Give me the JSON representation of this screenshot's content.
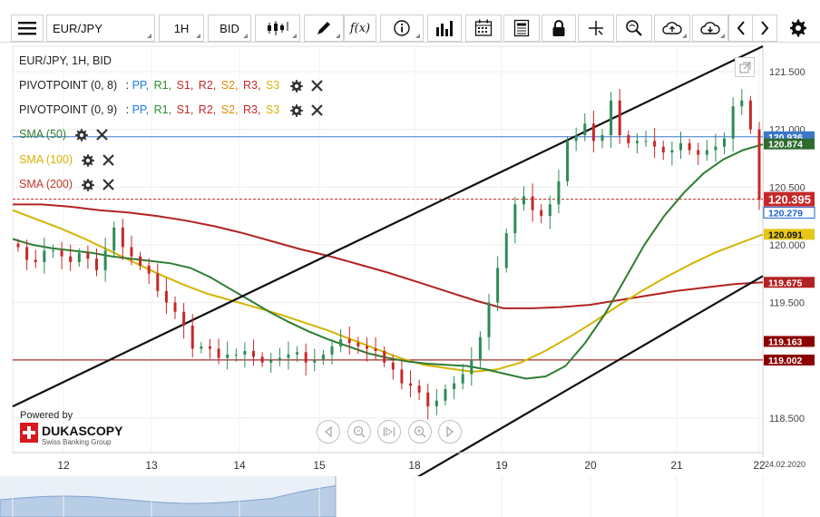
{
  "toolbar": {
    "symbol": "EUR/JPY",
    "timeframe": "1H",
    "price_side": "BID",
    "fx_label": "f(x)"
  },
  "legend": {
    "header": "EUR/JPY, 1H, BID",
    "pivots": [
      {
        "name": "PIVOTPOINT (0, 8)",
        "sep": ":",
        "levels": [
          "PP,",
          "R1,",
          "S1,",
          "R2,",
          "S2,",
          "R3,",
          "S3"
        ]
      },
      {
        "name": "PIVOTPOINT (0, 9)",
        "sep": ":",
        "levels": [
          "PP,",
          "R1,",
          "S1,",
          "R2,",
          "S2,",
          "R3,",
          "S3"
        ]
      }
    ],
    "pivot_colors": [
      "#1e7be0",
      "#2e8b2e",
      "#c62828",
      "#c62828",
      "#e08a00",
      "#c62828",
      "#d4b400"
    ],
    "sma": [
      {
        "label": "SMA (50)",
        "color": "#2e7d32"
      },
      {
        "label": "SMA (100)",
        "color": "#d4b400"
      },
      {
        "label": "SMA (200)",
        "color": "#c0392b"
      }
    ]
  },
  "branding": {
    "powered": "Powered by",
    "brand": "DUKASCOPY",
    "tagline": "Swiss Banking Group"
  },
  "chart_data": {
    "type": "candlestick",
    "symbol": "EUR/JPY",
    "interval": "1H",
    "ylim": [
      118.2,
      121.72
    ],
    "y_ticks": [
      118.5,
      119.0,
      119.5,
      120.0,
      120.5,
      121.0,
      121.5
    ],
    "y_tick_labels": [
      "118.500",
      "119.000",
      "119.500",
      "120.000",
      "120.500",
      "121.000",
      "121.500"
    ],
    "x_ticks": [
      "12",
      "13",
      "14",
      "15",
      "18",
      "19",
      "20",
      "21",
      "22"
    ],
    "date_label": "24.02.2020",
    "price_close": [
      119.98,
      119.87,
      119.85,
      119.95,
      119.95,
      119.9,
      119.85,
      119.93,
      119.88,
      119.78,
      119.95,
      120.15,
      119.98,
      119.9,
      119.82,
      119.75,
      119.6,
      119.5,
      119.42,
      119.3,
      119.1,
      119.12,
      119.1,
      119.02,
      119.05,
      119.05,
      119.08,
      119.03,
      118.98,
      119.0,
      119.02,
      119.05,
      119.07,
      118.98,
      119.0,
      119.05,
      119.12,
      119.18,
      119.15,
      119.12,
      119.1,
      119.08,
      118.98,
      118.92,
      118.8,
      118.78,
      118.72,
      118.6,
      118.65,
      118.75,
      118.8,
      118.88,
      119.0,
      119.2,
      119.5,
      119.8,
      120.1,
      120.35,
      120.42,
      120.3,
      120.25,
      120.35,
      120.55,
      120.9,
      120.95,
      121.05,
      120.9,
      120.95,
      121.25,
      120.95,
      120.88,
      120.9,
      120.9,
      120.85,
      120.8,
      120.82,
      120.88,
      120.82,
      120.78,
      120.82,
      120.85,
      120.92,
      121.2,
      121.25,
      121.0,
      120.39
    ],
    "levels": {
      "blue_line": {
        "value": 120.936,
        "label": "120.936",
        "color": "#3b78c9"
      },
      "last_close": {
        "value": 120.395,
        "label": "120.395",
        "color": "#c62828"
      },
      "blue2": {
        "value": 120.279,
        "label": "120.279",
        "color": "#1e63c9"
      },
      "sma50_label": {
        "value": 120.874,
        "label": "120.874",
        "color": "#2e6b2e"
      },
      "sma100_label": {
        "value": 120.091,
        "label": "120.091",
        "color": "#d4b400"
      },
      "sma200_label": {
        "value": 119.675,
        "label": "119.675",
        "color": "#b22222"
      },
      "red_tag_1": {
        "value": 119.163,
        "label": "119.163",
        "color": "#8b0000"
      },
      "red_tag_2": {
        "value": 119.002,
        "label": "119.002",
        "color": "#8b0000"
      }
    },
    "sma50": [
      120.05,
      120.0,
      119.97,
      119.95,
      119.93,
      119.9,
      119.88,
      119.86,
      119.84,
      119.8,
      119.72,
      119.62,
      119.52,
      119.42,
      119.33,
      119.25,
      119.18,
      119.12,
      119.06,
      119.02,
      118.99,
      118.97,
      118.96,
      118.95,
      118.92,
      118.88,
      118.84,
      118.86,
      118.95,
      119.15,
      119.4,
      119.7,
      120.0,
      120.25,
      120.45,
      120.62,
      120.74,
      120.82,
      120.87
    ],
    "sma100": [
      120.3,
      120.22,
      120.14,
      120.05,
      119.95,
      119.85,
      119.75,
      119.66,
      119.58,
      119.52,
      119.46,
      119.4,
      119.33,
      119.26,
      119.18,
      119.1,
      119.02,
      118.96,
      118.93,
      118.9,
      118.92,
      118.98,
      119.08,
      119.2,
      119.33,
      119.47,
      119.6,
      119.72,
      119.83,
      119.93,
      120.01,
      120.09
    ],
    "sma200": [
      120.35,
      120.35,
      120.33,
      120.3,
      120.28,
      120.25,
      120.21,
      120.16,
      120.1,
      120.03,
      119.96,
      119.9,
      119.83,
      119.76,
      119.68,
      119.6,
      119.52,
      119.45,
      119.45,
      119.46,
      119.48,
      119.52,
      119.56,
      119.6,
      119.63,
      119.66,
      119.675
    ],
    "trendlines": [
      {
        "name": "upper",
        "from": [
          0,
          118.6
        ],
        "to": [
          1,
          121.72
        ]
      },
      {
        "name": "lower",
        "from": [
          0.49,
          117.8
        ],
        "to": [
          1,
          119.73
        ]
      }
    ]
  }
}
